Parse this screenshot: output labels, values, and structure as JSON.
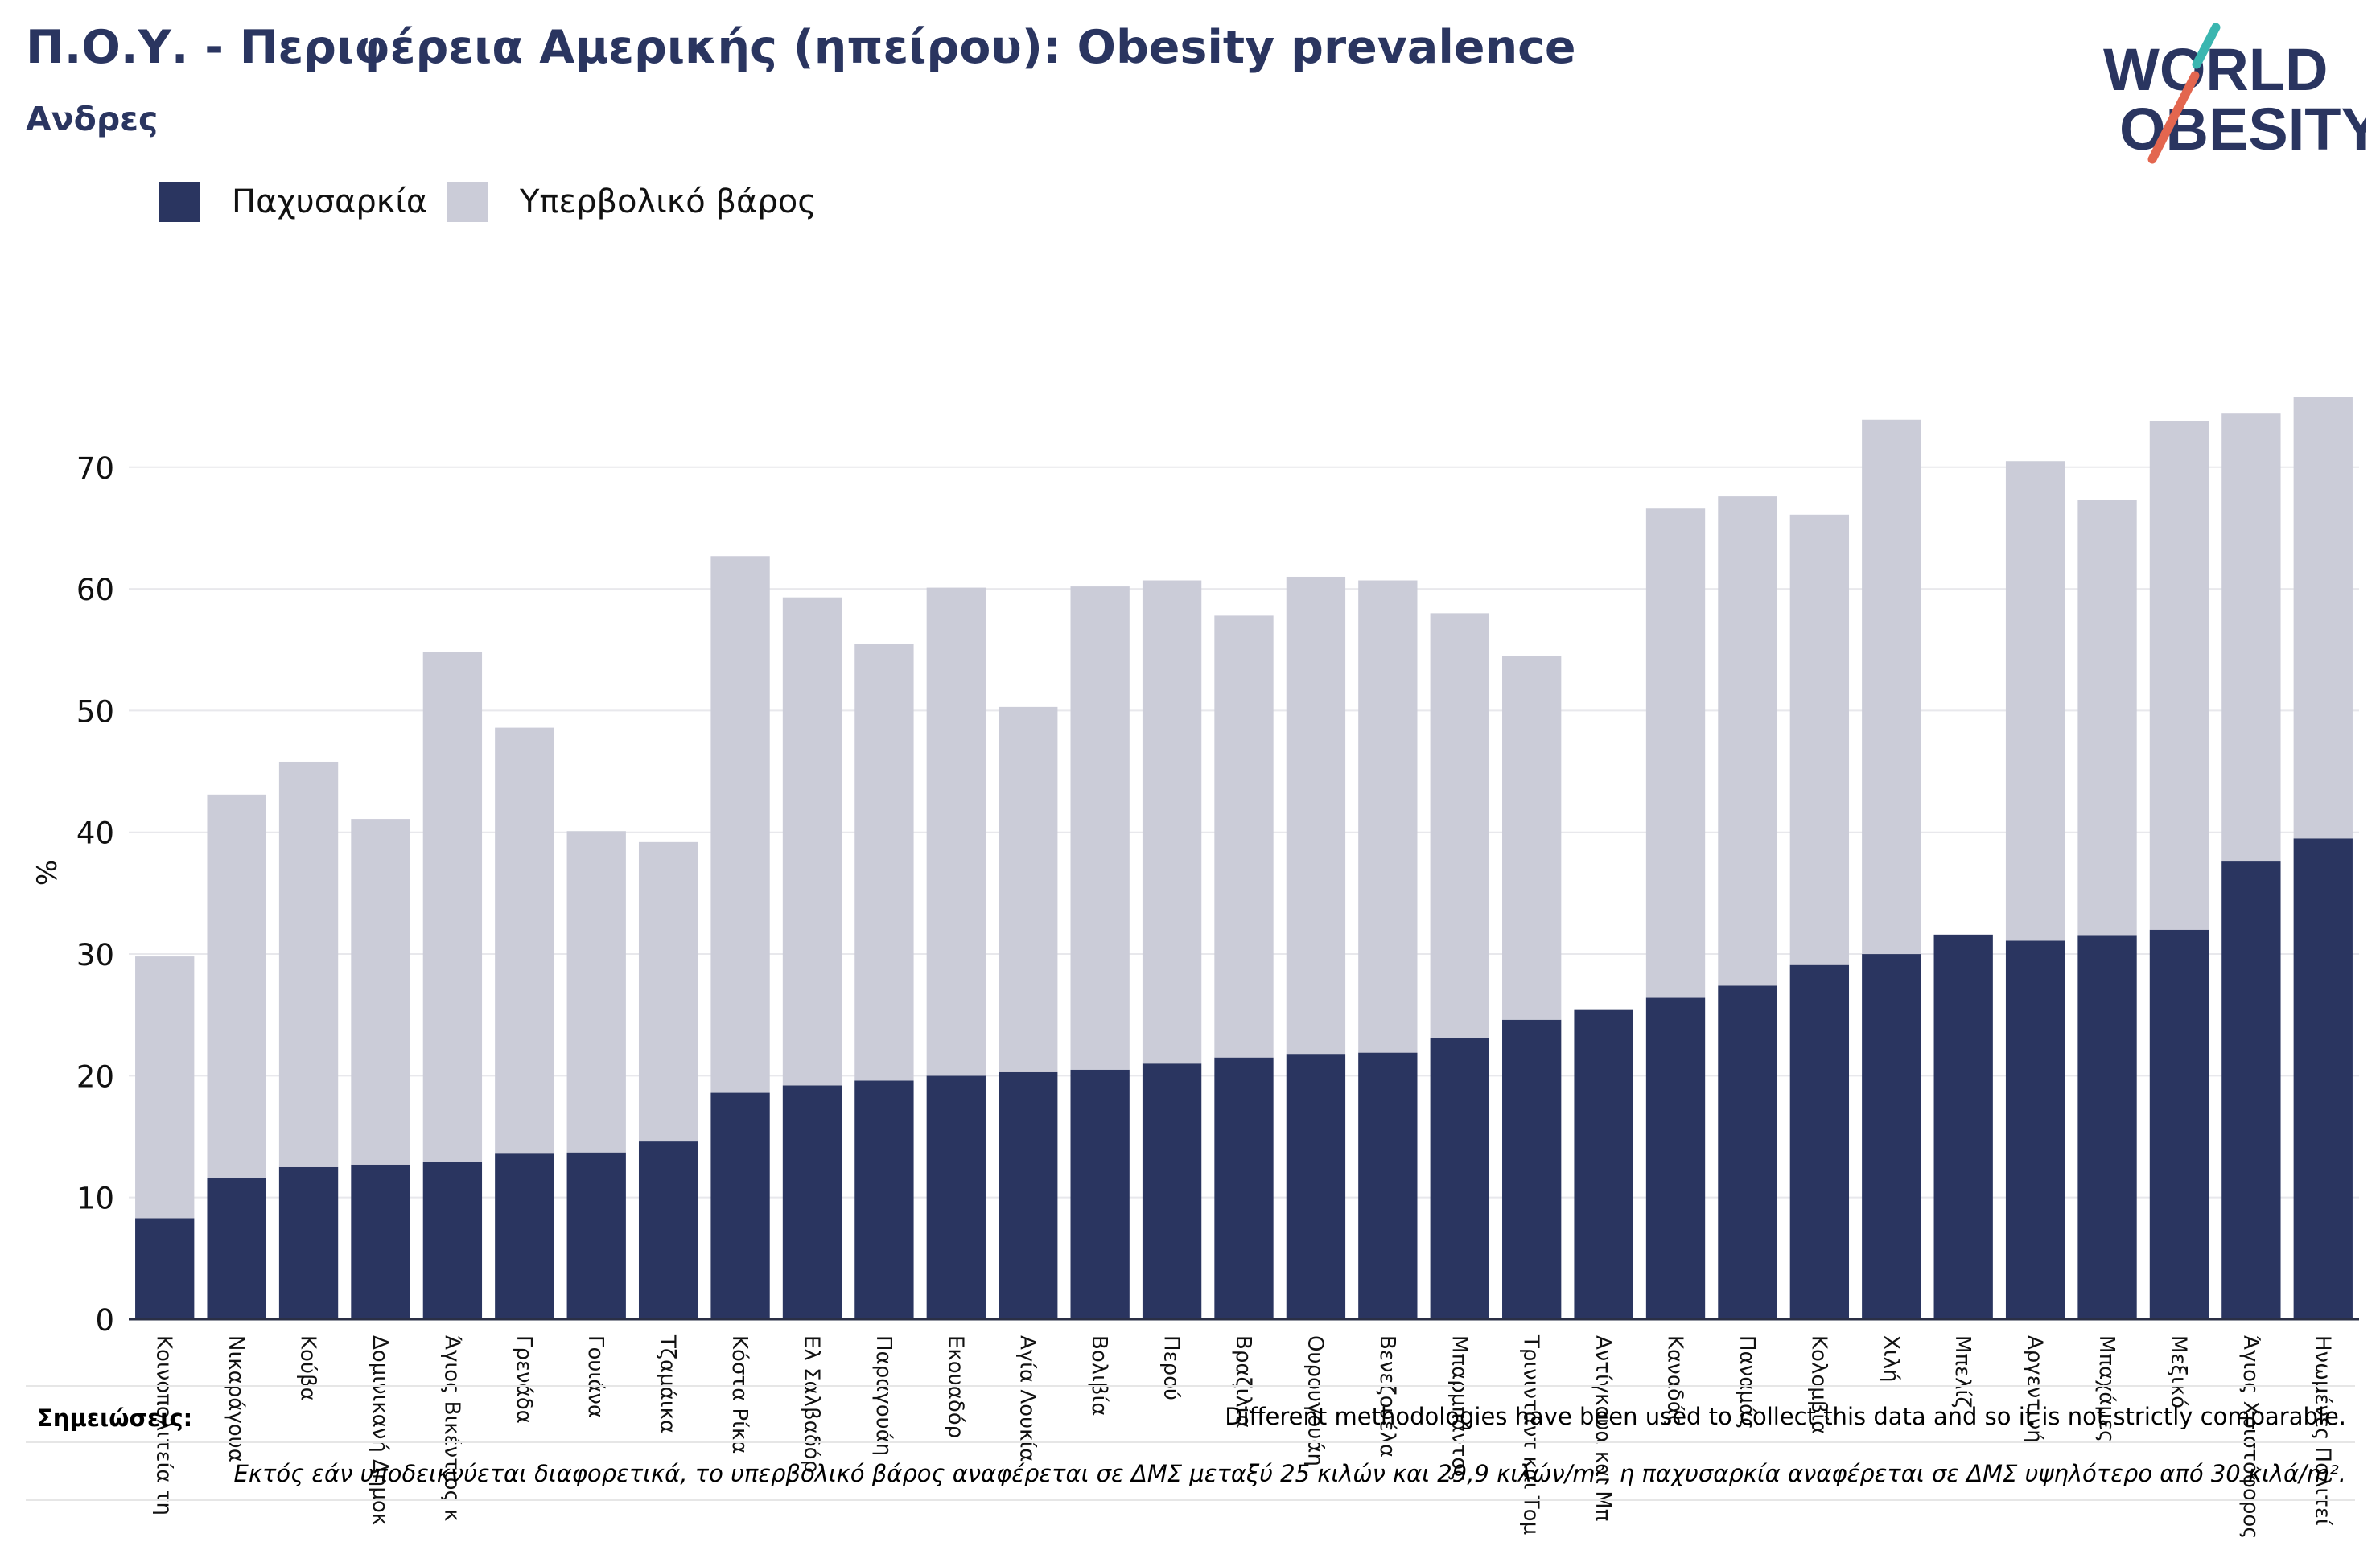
{
  "title": "Π.Ο.Υ. - Περιφέρεια Αμερικής (ηπείρου): Obesity prevalence",
  "subtitle": "Ανδρες",
  "logo": {
    "line1": "WORLD",
    "line2": "OBESITY",
    "text_color": "#2a3560",
    "slash_colors": [
      "#3ab6b0",
      "#e3664f"
    ]
  },
  "legend": [
    {
      "label": "Παχυσαρκία",
      "color": "#2a3560"
    },
    {
      "label": "Υπερβολικό βάρος",
      "color": "#cbccd8"
    }
  ],
  "notes": {
    "label": "Σημειώσεις:",
    "line1": "Different methodologies have been used to collect this data and so it is not strictly comparable.",
    "line2": "Εκτός εάν υποδεικνύεται διαφορετικά, το υπερβολικό βάρος αναφέρεται σε ΔΜΣ μεταξύ 25 κιλών και 29,9 κιλών/m², η παχυσαρκία αναφέρεται σε ΔΜΣ υψηλότερο από 30 κιλά/m²."
  },
  "chart_data": {
    "type": "bar",
    "stacked": true,
    "ylabel": "%",
    "ylim": [
      0,
      76
    ],
    "yticks": [
      0,
      10,
      20,
      30,
      40,
      50,
      60,
      70
    ],
    "grid": true,
    "legend_position": "top-left",
    "categories": [
      "Κοινοπολιτεία τη",
      "Νικαράγουα",
      "Κούβα",
      "Δομινικανή Δημοκ",
      "Άγιος Βικέντιος κ",
      "Γρενάδα",
      "Γουιάνα",
      "Τζαμάικα",
      "Κόστα Ρίκα",
      "Ελ Σαλβαδόρ",
      "Παραγουάη",
      "Εκουαδόρ",
      "Αγία Λουκία",
      "Βολιβία",
      "Περού",
      "Βραζιλία",
      "Ουρουγουάη",
      "Βενεζουέλα",
      "Μπαρμπάντος",
      "Τρινιντάντ και Τομ",
      "Αντίγκουα και Μπ",
      "Καναδάς",
      "Παναμάς",
      "Κολομβία",
      "Χιλή",
      "Μπελίζ",
      "Αργεντινή",
      "Μπαχάμες",
      "Μεξικό",
      "Άγιος Χριστόφορος",
      "Ηνωμένες Πολιτεί"
    ],
    "series": [
      {
        "name": "Παχυσαρκία",
        "color": "#2a3560",
        "values": [
          8.3,
          11.6,
          12.5,
          12.7,
          12.9,
          13.6,
          13.7,
          14.6,
          18.6,
          19.2,
          19.6,
          20.0,
          20.3,
          20.5,
          21.0,
          21.5,
          21.8,
          21.9,
          23.1,
          24.6,
          25.4,
          26.4,
          27.4,
          29.1,
          30.0,
          31.6,
          31.1,
          31.5,
          32.0,
          37.6,
          39.5
        ]
      },
      {
        "name": "Υπερβολικό βάρος",
        "color": "#cbccd8",
        "values": [
          21.5,
          31.5,
          33.3,
          28.4,
          41.9,
          35.0,
          26.4,
          24.6,
          44.1,
          40.1,
          35.9,
          40.1,
          30.0,
          39.7,
          39.7,
          36.3,
          39.2,
          38.8,
          34.9,
          29.9,
          null,
          40.2,
          40.2,
          37.0,
          43.9,
          null,
          39.4,
          35.8,
          41.8,
          36.8,
          36.3
        ]
      }
    ]
  }
}
